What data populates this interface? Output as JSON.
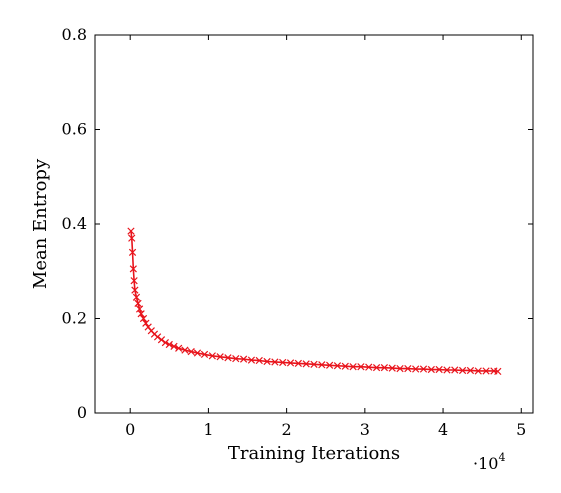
{
  "chart_data": {
    "type": "scatter",
    "title": "",
    "xlabel": "Training Iterations",
    "ylabel": "Mean Entropy",
    "x_multiplier": {
      "base": "10",
      "exponent": "4",
      "prefix": "·"
    },
    "xlim": [
      -0.45,
      5.15
    ],
    "ylim": [
      0,
      0.8
    ],
    "x_ticks": [
      0,
      1,
      2,
      3,
      4,
      5
    ],
    "y_ticks": [
      0,
      0.2,
      0.4,
      0.6,
      0.8
    ],
    "x_tick_labels": [
      "0",
      "1",
      "2",
      "3",
      "4",
      "5"
    ],
    "y_tick_labels": [
      "0",
      "0.2",
      "0.4",
      "0.6",
      "0.8"
    ],
    "grid": false,
    "legend": "none",
    "color": "#e8141c",
    "marker": "x",
    "series": [
      {
        "values": [
          [
            0.01,
            0.385
          ],
          [
            0.02,
            0.37
          ],
          [
            0.03,
            0.34
          ],
          [
            0.04,
            0.305
          ],
          [
            0.05,
            0.28
          ],
          [
            0.06,
            0.26
          ],
          [
            0.08,
            0.245
          ],
          [
            0.1,
            0.232
          ],
          [
            0.12,
            0.22
          ],
          [
            0.14,
            0.21
          ],
          [
            0.17,
            0.2
          ],
          [
            0.2,
            0.19
          ],
          [
            0.23,
            0.182
          ],
          [
            0.27,
            0.174
          ],
          [
            0.31,
            0.167
          ],
          [
            0.35,
            0.161
          ],
          [
            0.4,
            0.155
          ],
          [
            0.45,
            0.149
          ],
          [
            0.5,
            0.145
          ],
          [
            0.56,
            0.141
          ],
          [
            0.62,
            0.137
          ],
          [
            0.7,
            0.133
          ],
          [
            0.78,
            0.13
          ],
          [
            0.86,
            0.127
          ],
          [
            0.95,
            0.124
          ],
          [
            1.05,
            0.121
          ],
          [
            1.15,
            0.119
          ],
          [
            1.25,
            0.117
          ],
          [
            1.35,
            0.115
          ],
          [
            1.45,
            0.114
          ],
          [
            1.55,
            0.112
          ],
          [
            1.65,
            0.111
          ],
          [
            1.75,
            0.109
          ],
          [
            1.85,
            0.108
          ],
          [
            1.95,
            0.107
          ],
          [
            2.05,
            0.106
          ],
          [
            2.15,
            0.105
          ],
          [
            2.25,
            0.104
          ],
          [
            2.35,
            0.103
          ],
          [
            2.45,
            0.102
          ],
          [
            2.55,
            0.101
          ],
          [
            2.65,
            0.1
          ],
          [
            2.75,
            0.099
          ],
          [
            2.85,
            0.098
          ],
          [
            2.95,
            0.098
          ],
          [
            3.05,
            0.097
          ],
          [
            3.15,
            0.096
          ],
          [
            3.25,
            0.096
          ],
          [
            3.35,
            0.095
          ],
          [
            3.45,
            0.094
          ],
          [
            3.55,
            0.094
          ],
          [
            3.65,
            0.093
          ],
          [
            3.75,
            0.093
          ],
          [
            3.85,
            0.092
          ],
          [
            3.95,
            0.092
          ],
          [
            4.05,
            0.091
          ],
          [
            4.15,
            0.091
          ],
          [
            4.25,
            0.09
          ],
          [
            4.35,
            0.09
          ],
          [
            4.45,
            0.089
          ],
          [
            4.55,
            0.089
          ],
          [
            4.65,
            0.089
          ],
          [
            4.7,
            0.088
          ]
        ]
      }
    ]
  }
}
